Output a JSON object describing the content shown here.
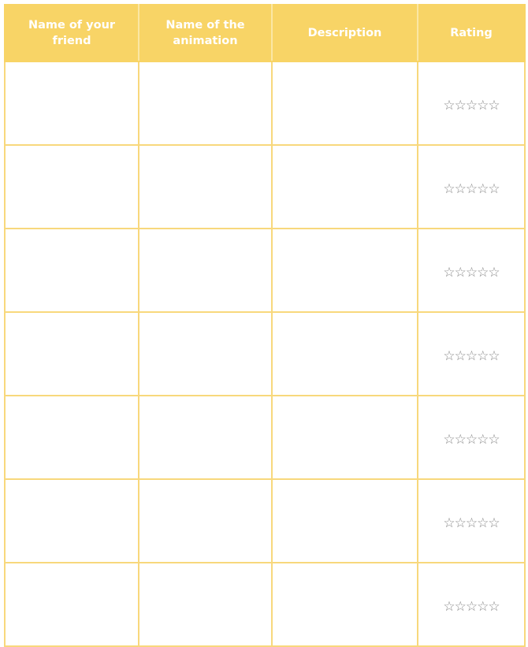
{
  "table": {
    "headers": [
      "Name of your friend",
      "Name of the animation",
      "Description",
      "Rating"
    ],
    "rows": [
      {
        "friend": "",
        "animation": "",
        "description": "",
        "rating": "☆☆☆☆☆"
      },
      {
        "friend": "",
        "animation": "",
        "description": "",
        "rating": "☆☆☆☆☆"
      },
      {
        "friend": "",
        "animation": "",
        "description": "",
        "rating": "☆☆☆☆☆"
      },
      {
        "friend": "",
        "animation": "",
        "description": "",
        "rating": "☆☆☆☆☆"
      },
      {
        "friend": "",
        "animation": "",
        "description": "",
        "rating": "☆☆☆☆☆"
      },
      {
        "friend": "",
        "animation": "",
        "description": "",
        "rating": "☆☆☆☆☆"
      },
      {
        "friend": "",
        "animation": "",
        "description": "",
        "rating": "☆☆☆☆☆"
      }
    ]
  },
  "colors": {
    "header_background": "#f8d466",
    "header_text": "#ffffff",
    "grid_border": "#f8d87c",
    "star_outline": "#8a8a8a"
  },
  "icons": {
    "rating_star": "star-outline-icon"
  }
}
